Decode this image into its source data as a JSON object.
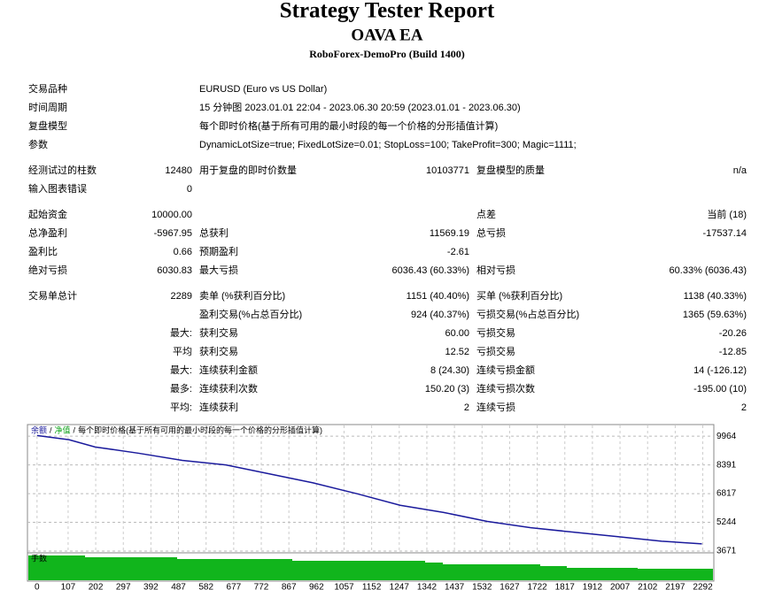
{
  "header": {
    "title": "Strategy Tester Report",
    "subtitle": "OAVA EA",
    "broker": "RoboForex-DemoPro (Build 1400)"
  },
  "sections": [
    [
      [
        "交易品种",
        null,
        "EURUSD (Euro vs US Dollar)"
      ],
      [
        "时间周期",
        null,
        "15 分钟图 2023.01.01 22:04 - 2023.06.30 20:59 (2023.01.01 - 2023.06.30)"
      ],
      [
        "复盘模型",
        null,
        "每个即时价格(基于所有可用的最小时段的每一个价格的分形插值计算)"
      ],
      [
        "参数",
        null,
        "DynamicLotSize=true; FixedLotSize=0.01; StopLoss=100; TakeProfit=300; Magic=1111;"
      ]
    ],
    [
      [
        "经测试过的柱数",
        "12480",
        "用于复盘的即时价数量",
        "10103771",
        "复盘模型的质量",
        "n/a"
      ],
      [
        "输入图表错误",
        "0"
      ]
    ],
    [
      [
        "起始资金",
        "10000.00",
        null,
        null,
        "点差",
        "当前 (18)"
      ],
      [
        "总净盈利",
        "-5967.95",
        "总获利",
        "11569.19",
        "总亏损",
        "-17537.14"
      ],
      [
        "盈利比",
        "0.66",
        "预期盈利",
        "-2.61"
      ],
      [
        "绝对亏损",
        "6030.83",
        "最大亏损",
        "6036.43 (60.33%)",
        "相对亏损",
        "60.33% (6036.43)"
      ]
    ],
    [
      [
        "交易单总计",
        "2289",
        "卖单 (%获利百分比)",
        "1151 (40.40%)",
        "买单 (%获利百分比)",
        "1138 (40.33%)"
      ],
      [
        null,
        null,
        "盈利交易(%占总百分比)",
        "924 (40.37%)",
        "亏损交易(%占总百分比)",
        "1365 (59.63%)"
      ],
      [
        null,
        "最大:",
        "获利交易",
        "60.00",
        "亏损交易",
        "-20.26"
      ],
      [
        null,
        "平均",
        "获利交易",
        "12.52",
        "亏损交易",
        "-12.85"
      ],
      [
        null,
        "最大:",
        "连续获利金额",
        "8 (24.30)",
        "连续亏损金额",
        "14 (-126.12)"
      ],
      [
        null,
        "最多:",
        "连续获利次数",
        "150.20 (3)",
        "连续亏损次数",
        "-195.00 (10)"
      ],
      [
        null,
        "平均:",
        "连续获利",
        "2",
        "连续亏损",
        "2"
      ]
    ]
  ],
  "chart_data": {
    "type": "line",
    "legend": [
      "余额",
      "净值",
      "每个即时价格(基于所有可用的最小时段的每一个价格的分形插值计算)"
    ],
    "legend_separator": "/",
    "volume_label": "手数",
    "x": [
      0,
      110,
      200,
      350,
      500,
      650,
      800,
      950,
      1100,
      1250,
      1400,
      1550,
      1700,
      1850,
      2000,
      2150,
      2289
    ],
    "series": [
      {
        "name": "余额",
        "color": "#1a1a9c",
        "values": [
          10000,
          9770,
          9374,
          9030,
          8637,
          8390,
          7900,
          7408,
          6818,
          6180,
          5785,
          5294,
          4950,
          4700,
          4458,
          4212,
          4064
        ]
      }
    ],
    "xlim": [
      -33,
      2330
    ],
    "ylim": [
      3573,
      10554
    ],
    "xticks": [
      0,
      107,
      202,
      297,
      392,
      487,
      582,
      677,
      772,
      867,
      962,
      1057,
      1152,
      1247,
      1342,
      1437,
      1532,
      1627,
      1722,
      1817,
      1912,
      2007,
      2102,
      2197,
      2292
    ],
    "yticks": [
      9964,
      8391,
      6817,
      5244,
      3671
    ],
    "grid": true
  }
}
